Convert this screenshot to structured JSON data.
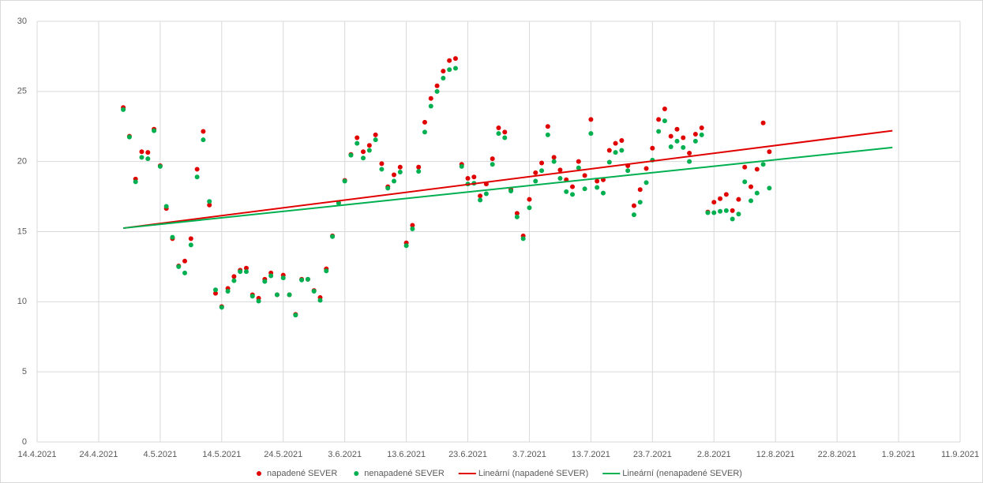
{
  "chart_data": {
    "type": "scatter",
    "x": [
      "28.4.2021",
      "29.4.2021",
      "30.4.2021",
      "1.5.2021",
      "2.5.2021",
      "3.5.2021",
      "4.5.2021",
      "5.5.2021",
      "6.5.2021",
      "7.5.2021",
      "8.5.2021",
      "9.5.2021",
      "10.5.2021",
      "11.5.2021",
      "12.5.2021",
      "13.5.2021",
      "14.5.2021",
      "15.5.2021",
      "16.5.2021",
      "17.5.2021",
      "18.5.2021",
      "19.5.2021",
      "20.5.2021",
      "21.5.2021",
      "22.5.2021",
      "23.5.2021",
      "24.5.2021",
      "25.5.2021",
      "26.5.2021",
      "27.5.2021",
      "28.5.2021",
      "29.5.2021",
      "30.5.2021",
      "31.5.2021",
      "1.6.2021",
      "2.6.2021",
      "3.6.2021",
      "4.6.2021",
      "5.6.2021",
      "6.6.2021",
      "7.6.2021",
      "8.6.2021",
      "9.6.2021",
      "10.6.2021",
      "11.6.2021",
      "12.6.2021",
      "13.6.2021",
      "14.6.2021",
      "15.6.2021",
      "16.6.2021",
      "17.6.2021",
      "18.6.2021",
      "19.6.2021",
      "20.6.2021",
      "21.6.2021",
      "22.6.2021",
      "23.6.2021",
      "24.6.2021",
      "25.6.2021",
      "26.6.2021",
      "27.6.2021",
      "28.6.2021",
      "29.6.2021",
      "30.6.2021",
      "1.7.2021",
      "2.7.2021",
      "3.7.2021",
      "4.7.2021",
      "5.7.2021",
      "6.7.2021",
      "7.7.2021",
      "8.7.2021",
      "9.7.2021",
      "10.7.2021",
      "11.7.2021",
      "12.7.2021",
      "13.7.2021",
      "14.7.2021",
      "15.7.2021",
      "16.7.2021",
      "17.7.2021",
      "18.7.2021",
      "19.7.2021",
      "20.7.2021",
      "21.7.2021",
      "22.7.2021",
      "23.7.2021",
      "24.7.2021",
      "25.7.2021",
      "26.7.2021",
      "27.7.2021",
      "28.7.2021",
      "29.7.2021",
      "30.7.2021",
      "31.7.2021",
      "1.8.2021",
      "2.8.2021",
      "3.8.2021",
      "4.8.2021",
      "5.8.2021",
      "6.8.2021",
      "7.8.2021",
      "8.8.2021",
      "9.8.2021",
      "10.8.2021",
      "11.8.2021"
    ],
    "series": [
      {
        "name": "napadené SEVER",
        "color": "#e00000",
        "values": [
          23.85,
          21.8,
          18.75,
          20.7,
          20.65,
          22.3,
          19.7,
          16.65,
          14.5,
          12.55,
          12.9,
          14.5,
          19.45,
          22.15,
          16.9,
          10.6,
          9.65,
          10.95,
          11.8,
          12.25,
          12.4,
          10.5,
          10.25,
          11.6,
          12.05,
          10.5,
          11.9,
          10.5,
          9.1,
          11.6,
          11.6,
          10.8,
          10.3,
          12.35,
          14.7,
          17.05,
          18.65,
          20.5,
          21.7,
          20.7,
          21.15,
          21.9,
          19.85,
          18.2,
          19.05,
          19.6,
          14.2,
          15.45,
          19.6,
          22.8,
          24.5,
          25.4,
          26.45,
          27.2,
          27.35,
          19.8,
          18.8,
          18.9,
          17.55,
          18.4,
          20.2,
          22.4,
          22.1,
          18.0,
          16.3,
          14.7,
          17.3,
          19.2,
          19.9,
          22.5,
          20.3,
          19.4,
          18.7,
          18.2,
          20.0,
          19.0,
          23.0,
          18.6,
          18.7,
          20.8,
          21.3,
          21.5,
          19.7,
          16.85,
          18.0,
          19.5,
          20.95,
          23.0,
          23.75,
          21.8,
          22.3,
          21.7,
          20.6,
          21.95,
          22.4,
          16.4,
          17.1,
          17.35,
          17.65,
          16.5,
          17.3,
          19.6,
          18.2,
          19.45,
          22.75,
          20.7
        ]
      },
      {
        "name": "nenapadené SEVER",
        "color": "#00b050",
        "values": [
          23.7,
          21.75,
          18.55,
          20.3,
          20.2,
          22.2,
          19.65,
          16.8,
          14.6,
          12.5,
          12.05,
          14.05,
          18.9,
          21.55,
          17.15,
          10.85,
          9.6,
          10.75,
          11.5,
          12.15,
          12.15,
          10.4,
          10.05,
          11.45,
          11.85,
          10.5,
          11.7,
          10.5,
          9.05,
          11.55,
          11.6,
          10.75,
          10.1,
          12.2,
          14.65,
          17.05,
          18.6,
          20.45,
          21.3,
          20.25,
          20.8,
          21.55,
          19.45,
          18.1,
          18.6,
          19.25,
          14.0,
          15.2,
          19.3,
          22.1,
          23.95,
          25.0,
          25.95,
          26.55,
          26.65,
          19.65,
          18.4,
          18.45,
          17.25,
          17.7,
          19.8,
          22.0,
          21.7,
          17.9,
          16.05,
          14.5,
          16.7,
          18.6,
          19.35,
          21.9,
          20.0,
          18.8,
          17.85,
          17.65,
          19.55,
          18.05,
          22.0,
          18.15,
          17.75,
          19.95,
          20.65,
          20.8,
          19.35,
          16.2,
          17.1,
          18.5,
          20.1,
          22.15,
          22.9,
          21.05,
          21.45,
          21.0,
          20.0,
          21.45,
          21.9,
          16.35,
          16.35,
          16.45,
          16.5,
          15.9,
          16.25,
          18.55,
          17.2,
          17.75,
          19.8,
          18.1
        ]
      },
      {
        "name": "Lineární (napadené SEVER)",
        "type": "line",
        "color": "#e00000",
        "x": [
          "28.4.2021",
          "31.8.2021"
        ],
        "values": [
          15.25,
          22.2
        ]
      },
      {
        "name": "Lineární (nenapadené SEVER)",
        "type": "line",
        "color": "#00b050",
        "x": [
          "28.4.2021",
          "31.8.2021"
        ],
        "values": [
          15.25,
          21.0
        ]
      }
    ],
    "xlim": [
      "14.4.2021",
      "11.9.2021"
    ],
    "xticks": [
      "14.4.2021",
      "24.4.2021",
      "4.5.2021",
      "14.5.2021",
      "24.5.2021",
      "3.6.2021",
      "13.6.2021",
      "23.6.2021",
      "3.7.2021",
      "13.7.2021",
      "23.7.2021",
      "2.8.2021",
      "12.8.2021",
      "22.8.2021",
      "1.9.2021",
      "11.9.2021"
    ],
    "ylim": [
      0,
      30
    ],
    "yticks": [
      0,
      5,
      10,
      15,
      20,
      25,
      30
    ],
    "grid": true,
    "legend": "bottom"
  }
}
